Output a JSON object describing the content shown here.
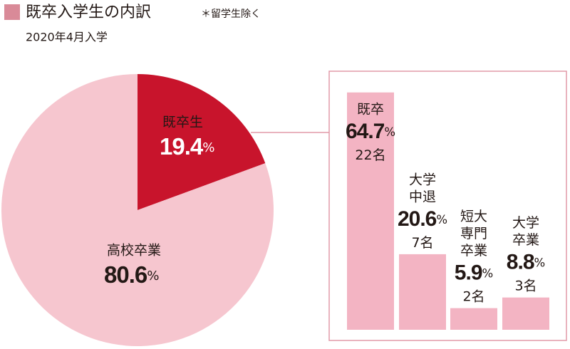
{
  "title": "既卒入学生の内訳",
  "note": "＊留学生除く",
  "subtitle": "2020年4月入学",
  "chart_data": [
    {
      "type": "pie",
      "categories": [
        "既卒生",
        "高校卒業"
      ],
      "values": [
        19.4,
        80.6
      ],
      "unit": "%",
      "colors": [
        "#c8142c",
        "#f6c6cf"
      ],
      "label_colors": [
        "#ffffff",
        "#231815"
      ]
    },
    {
      "type": "bar",
      "categories": [
        [
          "既卒"
        ],
        [
          "大学",
          "中退"
        ],
        [
          "短大",
          "専門",
          "卒業"
        ],
        [
          "大学",
          "卒業"
        ]
      ],
      "values": [
        64.7,
        20.6,
        5.9,
        8.8
      ],
      "unit": "%",
      "counts": [
        22,
        7,
        2,
        3
      ],
      "count_unit": "名",
      "color": "#f3b4c3"
    }
  ]
}
